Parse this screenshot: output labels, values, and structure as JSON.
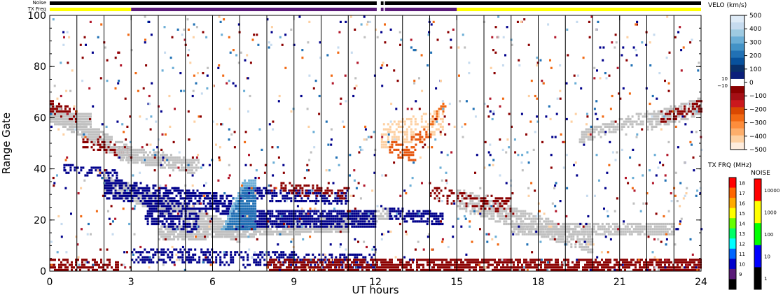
{
  "chart_data": {
    "type": "heatmap",
    "xlabel": "UT hours",
    "ylabel": "Range Gate",
    "xlim": [
      0,
      24
    ],
    "ylim": [
      0,
      100
    ],
    "x_ticks": [
      "0",
      "3",
      "6",
      "9",
      "12",
      "15",
      "18",
      "21",
      "24"
    ],
    "y_ticks": [
      "0",
      "20",
      "40",
      "60",
      "80",
      "100"
    ],
    "scan_boundaries_ut": [
      1.0,
      2.0,
      3.0,
      4.0,
      5.0,
      6.0,
      7.0,
      8.0,
      9.0,
      10.0,
      11.0,
      12.0,
      13.0,
      14.0,
      15.0,
      16.0,
      17.0,
      18.0,
      19.0,
      20.0,
      21.0,
      22.0,
      23.0
    ],
    "status_bars": {
      "noise_label": "Noise",
      "txfreq_label": "TX Freq",
      "noise_segments": [
        {
          "start": 0.0,
          "end": 12.05,
          "color": "#000000"
        },
        {
          "start": 12.2,
          "end": 12.3,
          "color": "#000000"
        },
        {
          "start": 12.35,
          "end": 24.0,
          "color": "#000000"
        }
      ],
      "txfreq_segments": [
        {
          "start": 0.0,
          "end": 3.0,
          "color": "#ffff00"
        },
        {
          "start": 3.0,
          "end": 12.05,
          "color": "#5a1a78"
        },
        {
          "start": 12.2,
          "end": 12.3,
          "color": "#5a1a78"
        },
        {
          "start": 12.35,
          "end": 15.0,
          "color": "#5a1a78"
        },
        {
          "start": 15.0,
          "end": 24.0,
          "color": "#ffff00"
        }
      ]
    },
    "regions": [
      {
        "kind": "band",
        "x0": 0.0,
        "x1": 2.9,
        "gate_start": 62,
        "gate_end": 45,
        "width": 5,
        "color": "#c0c0c0",
        "density": 0.85
      },
      {
        "kind": "band",
        "x0": 0.0,
        "x1": 1.5,
        "gate_start": 60,
        "gate_end": 58,
        "width": 4,
        "color": "#c0c0c0",
        "density": 0.9
      },
      {
        "kind": "band",
        "x0": 0.0,
        "x1": 1.0,
        "gate_start": 64,
        "gate_end": 60,
        "width": 3,
        "color": "#8b0000",
        "density": 0.5
      },
      {
        "kind": "band",
        "x0": 1.2,
        "x1": 3.0,
        "gate_start": 50,
        "gate_end": 46,
        "width": 3,
        "color": "#8b0000",
        "density": 0.4
      },
      {
        "kind": "band",
        "x0": 0.5,
        "x1": 2.5,
        "gate_start": 40,
        "gate_end": 37,
        "width": 2,
        "color": "#00008b",
        "density": 0.6
      },
      {
        "kind": "band",
        "x0": 2.5,
        "x1": 5.5,
        "gate_start": 46,
        "gate_end": 40,
        "width": 4,
        "color": "#c0c0c0",
        "density": 0.8
      },
      {
        "kind": "band",
        "x0": 2.0,
        "x1": 7.0,
        "gate_start": 34,
        "gate_end": 14,
        "width": 5,
        "color": "#c0c0c0",
        "density": 0.85
      },
      {
        "kind": "band",
        "x0": 4.0,
        "x1": 11.0,
        "gate_start": 14,
        "gate_end": 18,
        "width": 4,
        "color": "#c0c0c0",
        "density": 0.85
      },
      {
        "kind": "band",
        "x0": 10.0,
        "x1": 12.5,
        "gate_start": 18,
        "gate_end": 22,
        "width": 3,
        "color": "#c0c0c0",
        "density": 0.8
      },
      {
        "kind": "band",
        "x0": 2.0,
        "x1": 6.8,
        "gate_start": 32,
        "gate_end": 25,
        "width": 6,
        "color": "#00008b",
        "density": 0.75
      },
      {
        "kind": "band",
        "x0": 3.5,
        "x1": 5.5,
        "gate_start": 22,
        "gate_end": 18,
        "width": 6,
        "color": "#00008b",
        "density": 0.7
      },
      {
        "kind": "band",
        "x0": 7.0,
        "x1": 12.0,
        "gate_start": 20,
        "gate_end": 20,
        "width": 5,
        "color": "#00008b",
        "density": 0.85
      },
      {
        "kind": "band",
        "x0": 7.0,
        "x1": 11.0,
        "gate_start": 30,
        "gate_end": 28,
        "width": 3,
        "color": "#00008b",
        "density": 0.6
      },
      {
        "kind": "band",
        "x0": 8.5,
        "x1": 11.0,
        "gate_start": 32,
        "gate_end": 30,
        "width": 3,
        "color": "#8b0000",
        "density": 0.45
      },
      {
        "kind": "band",
        "x0": 3.0,
        "x1": 12.0,
        "gate_start": 6,
        "gate_end": 3,
        "width": 4,
        "color": "#00008b",
        "density": 0.45
      },
      {
        "kind": "band",
        "x0": 0.0,
        "x1": 2.5,
        "gate_start": 2,
        "gate_end": 2,
        "width": 3,
        "color": "#8b0000",
        "density": 0.55
      },
      {
        "kind": "band",
        "x0": 8.0,
        "x1": 24.0,
        "gate_start": 2,
        "gate_end": 2,
        "width": 3,
        "color": "#8b0000",
        "density": 0.75
      },
      {
        "kind": "band",
        "x0": 12.5,
        "x1": 14.5,
        "gate_start": 22,
        "gate_end": 20,
        "width": 3,
        "color": "#00008b",
        "density": 0.7
      },
      {
        "kind": "band",
        "x0": 15.0,
        "x1": 20.0,
        "gate_start": 28,
        "gate_end": 10,
        "width": 6,
        "color": "#c0c0c0",
        "density": 0.8
      },
      {
        "kind": "band",
        "x0": 17.0,
        "x1": 23.0,
        "gate_start": 16,
        "gate_end": 16,
        "width": 4,
        "color": "#c0c0c0",
        "density": 0.75
      },
      {
        "kind": "band",
        "x0": 14.0,
        "x1": 17.0,
        "gate_start": 30,
        "gate_end": 25,
        "width": 4,
        "color": "#8b0000",
        "density": 0.35
      },
      {
        "kind": "band",
        "x0": 22.0,
        "x1": 24.0,
        "gate_start": 58,
        "gate_end": 64,
        "width": 5,
        "color": "#c0c0c0",
        "density": 0.7
      },
      {
        "kind": "band",
        "x0": 22.5,
        "x1": 24.0,
        "gate_start": 60,
        "gate_end": 64,
        "width": 3,
        "color": "#8b0000",
        "density": 0.5
      },
      {
        "kind": "band",
        "x0": 19.5,
        "x1": 22.0,
        "gate_start": 52,
        "gate_end": 60,
        "width": 3,
        "color": "#c0c0c0",
        "density": 0.6
      },
      {
        "kind": "band",
        "x0": 12.2,
        "x1": 14.5,
        "gate_start": 52,
        "gate_end": 58,
        "width": 8,
        "color": "#fdd0a2",
        "density": 0.55
      },
      {
        "kind": "band",
        "x0": 12.5,
        "x1": 13.5,
        "gate_start": 48,
        "gate_end": 44,
        "width": 4,
        "color": "#e6550d",
        "density": 0.6
      },
      {
        "kind": "band",
        "x0": 13.3,
        "x1": 14.0,
        "gate_start": 50,
        "gate_end": 54,
        "width": 3,
        "color": "#e6550d",
        "density": 0.55
      },
      {
        "kind": "band",
        "x0": 14.0,
        "x1": 14.6,
        "gate_start": 57,
        "gate_end": 66,
        "width": 2,
        "color": "#f16913",
        "density": 0.6
      }
    ],
    "highlight": {
      "x0": 6.3,
      "x1": 7.6,
      "gate_low": 16,
      "gate_high": 35,
      "color_inner": "#6baed6",
      "color_outer": "#2171b5"
    },
    "scatter_colors": [
      "#8b0000",
      "#8b0000",
      "#00008b",
      "#00008b",
      "#2171b5",
      "#6baed6",
      "#c6dbef",
      "#c0c0c0",
      "#f16913",
      "#fdd0a2",
      "#b2182b"
    ],
    "scatter_count": 1100,
    "velocity_scale": {
      "title": "VELO (km/s)",
      "ticks": [
        "500",
        "400",
        "300",
        "200",
        "100",
        "0",
        "−100",
        "−200",
        "−300",
        "−400",
        "−500"
      ],
      "side_labels": [
        "10",
        "−10"
      ],
      "colors": [
        "#deebf7",
        "#c6dbef",
        "#9ecae1",
        "#6baed6",
        "#4292c6",
        "#2171b5",
        "#08519c",
        "#08306b",
        "#0b1f7a",
        "#ffffff",
        "#8b0000",
        "#a50f15",
        "#cb181d",
        "#d94801",
        "#f16913",
        "#fd8d3c",
        "#fdae6b",
        "#fdd0a2",
        "#feedde"
      ]
    },
    "txfreq_scale": {
      "title": "TX FRQ (MHz)",
      "ticks": [
        "18",
        "17",
        "16",
        "15",
        "14",
        "13",
        "12",
        "11",
        "10",
        "9"
      ],
      "colors": [
        "#ff0000",
        "#ff6600",
        "#ffaa00",
        "#ffff00",
        "#66ff00",
        "#00ff66",
        "#00ffff",
        "#0066ff",
        "#0000cc",
        "#5a1a78",
        "#000000"
      ]
    },
    "noise_scale": {
      "title": "NOISE",
      "ticks": [
        "10000",
        "1000",
        "100",
        "10",
        "1"
      ],
      "colors": [
        "#ff0000",
        "#ffff00",
        "#00ff00",
        "#0000ff",
        "#000000"
      ]
    }
  }
}
